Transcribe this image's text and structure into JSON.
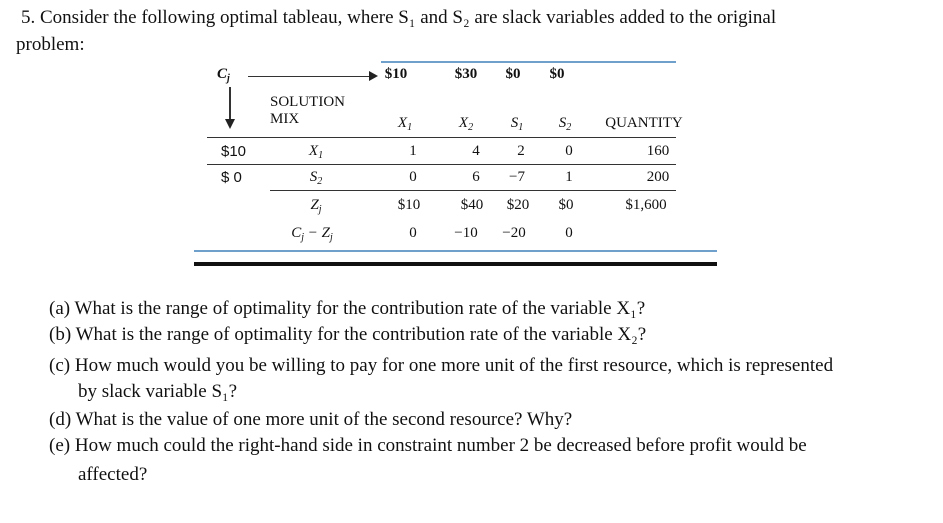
{
  "problem": {
    "number": "5.",
    "line1": "Consider the following optimal tableau, where S₁ and S₂ are slack variables added to the original",
    "line2": "problem:"
  },
  "tableau": {
    "cj_label": "C",
    "cj_sub": "j",
    "cj_values": [
      "$10",
      "$30",
      "$0",
      "$0"
    ],
    "solution_mix_line1": "SOLUTION",
    "solution_mix_line2": "MIX",
    "col_headers": [
      {
        "main": "X",
        "sub": "1"
      },
      {
        "main": "X",
        "sub": "2"
      },
      {
        "main": "S",
        "sub": "1"
      },
      {
        "main": "S",
        "sub": "2"
      }
    ],
    "quantity_header": "QUANTITY",
    "rows": [
      {
        "cj": "$10",
        "var_main": "X",
        "var_sub": "1",
        "values": [
          "1",
          "4",
          "2",
          "0"
        ],
        "quantity": "160"
      },
      {
        "cj": "$ 0",
        "var_main": "S",
        "var_sub": "2",
        "values": [
          "0",
          "6",
          "−7",
          "1"
        ],
        "quantity": "200"
      }
    ],
    "zj_label": "Z",
    "zj_sub": "j",
    "zj_values": [
      "$10",
      "$40",
      "$20",
      "$0"
    ],
    "zj_quantity": "$1,600",
    "cjzj_label_c": "C",
    "cjzj_label_z": "Z",
    "cjzj_sub": "j",
    "cjzj_values": [
      "0",
      "−10",
      "−20",
      "0"
    ]
  },
  "questions": [
    {
      "label": "(a)",
      "text": "What is the range of optimality for the contribution rate of the variable X₁?"
    },
    {
      "label": "(b)",
      "text": "What is the range of optimality for the contribution rate of the variable X₂?"
    },
    {
      "label": "(c)",
      "text": "How much would you be willing to pay for one more unit of the first resource, which is represented",
      "cont": "by slack variable S₁?"
    },
    {
      "label": "(d)",
      "text": "What is the value of one more unit of the second resource? Why?"
    },
    {
      "label": "(e)",
      "text": "How much could the right-hand side in constraint number 2 be decreased before profit would be",
      "cont": "affected?"
    }
  ]
}
